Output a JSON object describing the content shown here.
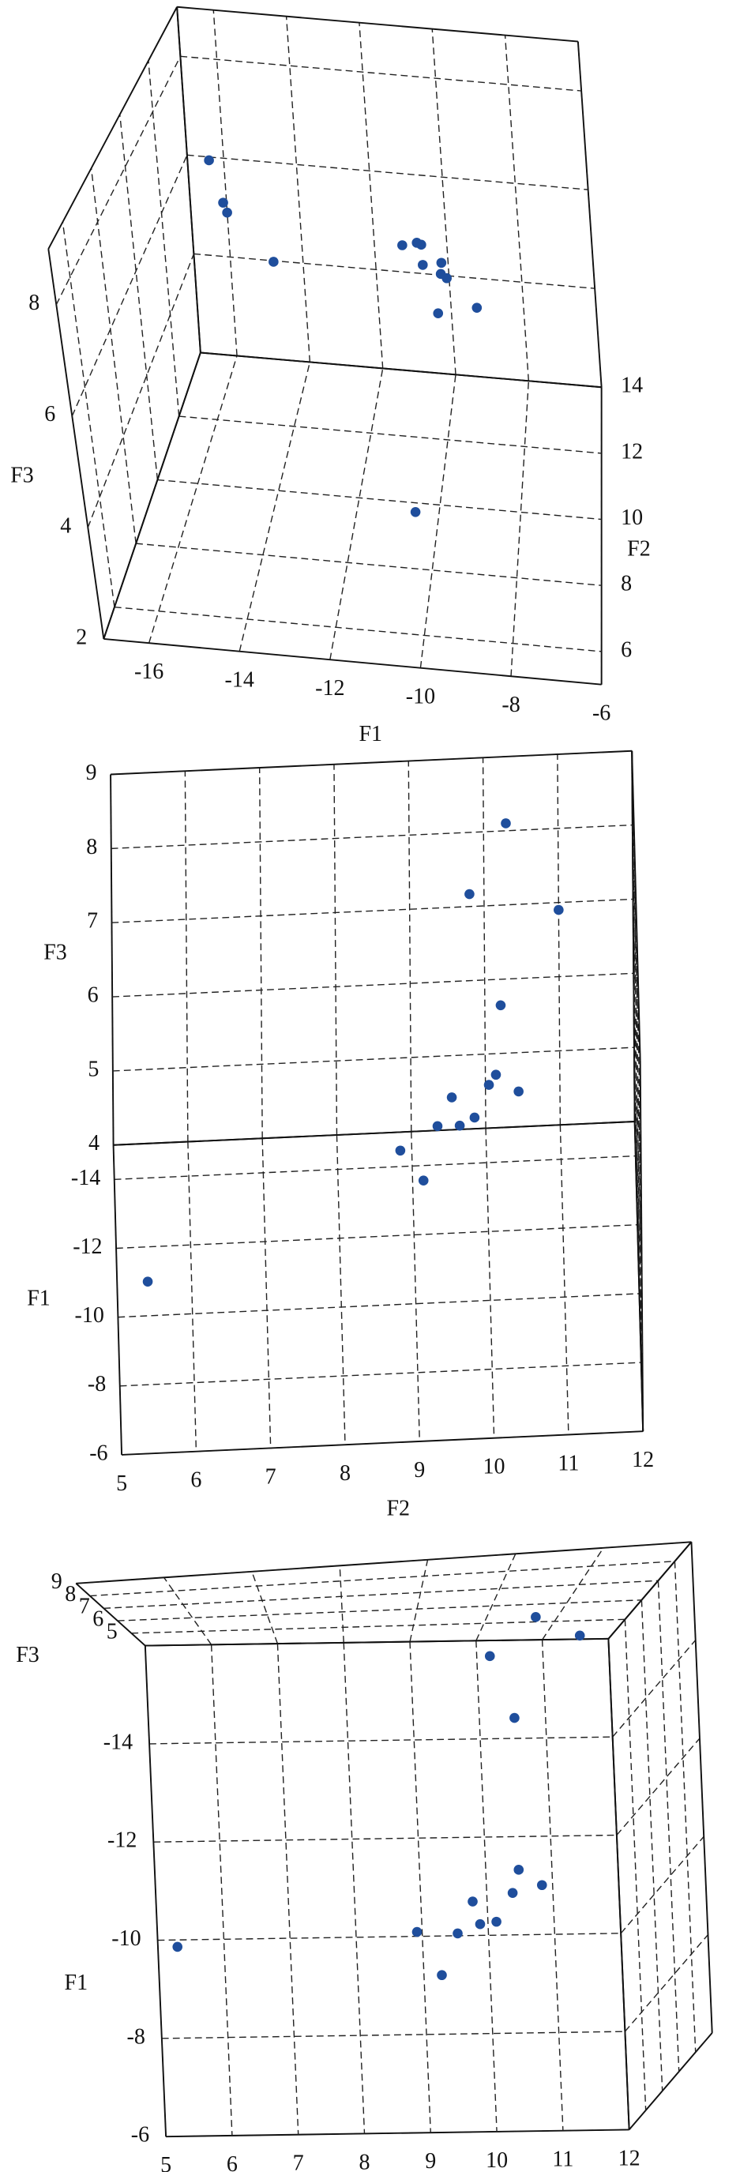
{
  "chart_data": [
    {
      "type": "scatter3d",
      "x_label": "F1",
      "y_label": "F2",
      "z_label": "F3",
      "color": "#1f4e9c",
      "grid": true,
      "xlim": [
        -17,
        -6
      ],
      "ylim": [
        5,
        14
      ],
      "zlim": [
        2,
        9
      ],
      "xticks": [
        -16,
        -14,
        -12,
        -10,
        -8,
        -6
      ],
      "yticks": [
        6,
        8,
        10,
        12,
        14
      ],
      "zticks": [
        2,
        4,
        6,
        8
      ],
      "x": [
        -9.7,
        -9.3,
        -8.4,
        -9.7,
        -9.1,
        -9.3,
        -9.3,
        -9.8,
        -10.3,
        -10.0,
        -13.6,
        -15.0,
        -14.5,
        -15.0
      ],
      "y": [
        5.4,
        8.8,
        9.1,
        9.5,
        9.3,
        9.6,
        9.8,
        10.0,
        10.1,
        10.4,
        10.2,
        10.3,
        9.8,
        11.0
      ],
      "z": [
        4.6,
        6.4,
        6.4,
        6.9,
        6.8,
        6.7,
        6.8,
        7.0,
        6.9,
        6.8,
        6.3,
        8.1,
        7.4,
        6.9
      ]
    },
    {
      "type": "scatter3d",
      "x_label": "F1",
      "y_label": "F2",
      "z_label": "F3",
      "color": "#1f4e9c",
      "grid": true,
      "xlim": [
        -15,
        -6
      ],
      "ylim": [
        5,
        12
      ],
      "zlim": [
        4,
        9
      ],
      "xticks": [
        -14,
        -12,
        -10,
        -8,
        -6
      ],
      "yticks": [
        5,
        6,
        7,
        8,
        9,
        10,
        11,
        12
      ],
      "zticks": [
        4,
        5,
        6,
        7,
        8,
        9
      ],
      "x": [
        -9.7,
        -9.3,
        -8.4,
        -9.7,
        -9.1,
        -9.3,
        -9.3,
        -9.8,
        -10.3,
        -10.0,
        -13.6,
        -15.0,
        -14.5,
        -15.0
      ],
      "y": [
        5.4,
        8.8,
        9.1,
        9.5,
        9.3,
        9.6,
        9.8,
        10.0,
        10.1,
        10.4,
        10.2,
        10.3,
        9.8,
        11.0
      ],
      "z": [
        4.6,
        6.4,
        6.4,
        6.9,
        6.8,
        6.7,
        6.8,
        7.0,
        6.9,
        6.8,
        6.3,
        8.1,
        7.4,
        6.9
      ]
    },
    {
      "type": "scatter3d",
      "x_label": "F1",
      "y_label": "F2",
      "z_label": "F3",
      "color": "#1f4e9c",
      "grid": true,
      "xlim": [
        -16,
        -6
      ],
      "ylim": [
        5,
        12
      ],
      "zlim": [
        4,
        9
      ],
      "xticks": [
        -14,
        -12,
        -10,
        -8,
        -6
      ],
      "yticks": [
        5,
        6,
        7,
        8,
        9,
        10,
        11,
        12
      ],
      "zticks": [
        5,
        6,
        7,
        8,
        9
      ],
      "x": [
        -9.7,
        -9.3,
        -8.4,
        -9.7,
        -9.1,
        -9.3,
        -9.3,
        -9.8,
        -10.3,
        -10.0,
        -13.6,
        -15.0,
        -14.5,
        -15.0
      ],
      "y": [
        5.4,
        8.8,
        9.1,
        9.5,
        9.3,
        9.6,
        9.8,
        10.0,
        10.1,
        10.4,
        10.2,
        10.3,
        9.8,
        11.0
      ],
      "z": [
        4.6,
        6.4,
        6.4,
        6.9,
        6.8,
        6.7,
        6.8,
        7.0,
        6.9,
        6.8,
        6.3,
        8.1,
        7.4,
        6.9
      ]
    }
  ]
}
